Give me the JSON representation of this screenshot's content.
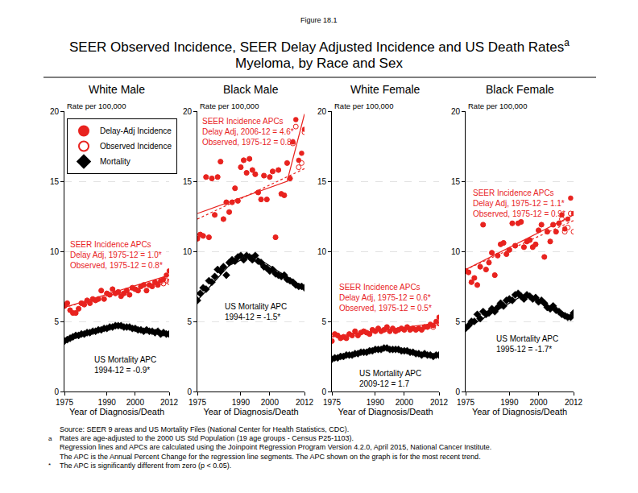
{
  "figure_label": "Figure 18.1",
  "title_lines": [
    "SEER Observed Incidence, SEER Delay Adjusted Incidence and US Death Rates",
    "Myeloma, by Race and Sex"
  ],
  "title_mark": "a",
  "footnotes": [
    {
      "mark": null,
      "text": "Source: SEER 9 areas and US Mortality Files (National Center for Health Statistics, CDC)."
    },
    {
      "mark": "a",
      "text": "Rates are age-adjusted to the 2000 US Std Population (19 age groups - Census P25-1103)."
    },
    {
      "mark": null,
      "text": "Regression lines and APCs are calculated using the Joinpoint Regression Program Version 4.2.0, April 2015, National Cancer Institute."
    },
    {
      "mark": null,
      "text": "The APC is the Annual Percent Change for the regression line segments. The APC shown on the graph is for the most recent trend."
    },
    {
      "mark": "*",
      "text": "The APC is significantly different from zero (p < 0.05)."
    }
  ],
  "chart_data": [
    {
      "type": "scatter",
      "title": "White Male",
      "y_label": "Rate per 100,000",
      "x_label": "Year of Diagnosis/Death",
      "xlim": [
        1975,
        2012
      ],
      "xticks": [
        1975,
        1990,
        2000,
        2012
      ],
      "ylim": [
        0,
        20
      ],
      "yticks": [
        0,
        5,
        10,
        15,
        20
      ],
      "grid": true,
      "legend": "top-left",
      "x": [
        1975,
        1976,
        1977,
        1978,
        1979,
        1980,
        1981,
        1982,
        1983,
        1984,
        1985,
        1986,
        1987,
        1988,
        1989,
        1990,
        1991,
        1992,
        1993,
        1994,
        1995,
        1996,
        1997,
        1998,
        1999,
        2000,
        2001,
        2002,
        2003,
        2004,
        2005,
        2006,
        2007,
        2008,
        2009,
        2010,
        2011,
        2012
      ],
      "series": [
        {
          "name": "Delay-Adj Incidence",
          "color": "#e8231f",
          "marker": "circle",
          "values": [
            6.1,
            6.3,
            5.8,
            5.6,
            5.6,
            5.9,
            6.3,
            6.2,
            6.5,
            6.3,
            6.6,
            6.5,
            6.6,
            7.2,
            6.6,
            7.0,
            6.9,
            7.3,
            7.0,
            7.1,
            6.8,
            7.0,
            7.2,
            6.9,
            7.4,
            7.3,
            7.2,
            7.5,
            7.6,
            7.2,
            7.6,
            7.5,
            7.8,
            7.6,
            7.9,
            8.0,
            8.3,
            8.6
          ]
        },
        {
          "name": "Observed Incidence",
          "color": "#e8231f",
          "marker": "circle-open",
          "values": [
            6.1,
            6.3,
            5.8,
            5.6,
            5.6,
            5.9,
            6.3,
            6.2,
            6.5,
            6.3,
            6.6,
            6.5,
            6.6,
            7.2,
            6.6,
            7.0,
            6.9,
            7.3,
            7.0,
            7.1,
            6.8,
            7.0,
            7.2,
            6.9,
            7.4,
            7.3,
            7.2,
            7.5,
            7.6,
            7.2,
            7.6,
            7.5,
            7.8,
            7.6,
            7.8,
            7.7,
            7.9,
            7.8
          ]
        },
        {
          "name": "Mortality",
          "color": "#000000",
          "marker": "diamond",
          "values": [
            3.6,
            3.7,
            3.8,
            3.9,
            4.0,
            4.0,
            4.1,
            4.1,
            4.2,
            4.2,
            4.3,
            4.3,
            4.4,
            4.4,
            4.5,
            4.5,
            4.6,
            4.6,
            4.7,
            4.7,
            4.7,
            4.6,
            4.6,
            4.6,
            4.5,
            4.5,
            4.4,
            4.4,
            4.3,
            4.4,
            4.3,
            4.3,
            4.2,
            4.3,
            4.1,
            4.2,
            4.1,
            4.1
          ]
        }
      ],
      "trend_lines": [
        {
          "x": [
            1975,
            2012
          ],
          "values": [
            6.0,
            8.3
          ],
          "color": "#e8231f",
          "line_style": "solid"
        },
        {
          "x": [
            1975,
            2012
          ],
          "values": [
            6.0,
            8.0
          ],
          "color": "#e8231f",
          "line_style": "dotted"
        },
        {
          "x": [
            1975,
            1982,
            1994,
            2012
          ],
          "values": [
            3.6,
            4.2,
            4.75,
            4.1
          ],
          "color": "#000000",
          "line_style": "solid"
        }
      ],
      "annotations": [
        {
          "lines": [
            "SEER Incidence APCs",
            "Delay Adj, 1975-12 = 1.0*",
            "Observed, 1975-12 = 0.8*"
          ],
          "color": "#e8231f"
        },
        {
          "lines": [
            "US Mortality APC",
            "1994-12 = -0.9*"
          ],
          "color": "#000000"
        }
      ]
    },
    {
      "type": "scatter",
      "title": "Black Male",
      "y_label": "Rate per 100,000",
      "x_label": "Year of Diagnosis/Death",
      "xlim": [
        1975,
        2012
      ],
      "xticks": [
        1975,
        1990,
        2000,
        2012
      ],
      "ylim": [
        0,
        20
      ],
      "yticks": [
        0,
        5,
        10,
        15,
        20
      ],
      "grid": true,
      "x": [
        1975,
        1976,
        1977,
        1978,
        1979,
        1980,
        1981,
        1982,
        1983,
        1984,
        1985,
        1986,
        1987,
        1988,
        1989,
        1990,
        1991,
        1992,
        1993,
        1994,
        1995,
        1996,
        1997,
        1998,
        1999,
        2000,
        2001,
        2002,
        2003,
        2004,
        2005,
        2006,
        2007,
        2008,
        2009,
        2010,
        2011,
        2012
      ],
      "series": [
        {
          "name": "Delay-Adj Incidence",
          "color": "#e8231f",
          "marker": "circle",
          "values": [
            10.9,
            11.2,
            11.1,
            15.3,
            11.0,
            15.2,
            12.6,
            15.3,
            16.4,
            12.3,
            13.5,
            12.8,
            13.5,
            14.5,
            13.6,
            16.0,
            16.5,
            15.6,
            16.6,
            15.8,
            15.5,
            14.2,
            13.7,
            15.4,
            13.7,
            15.3,
            15.7,
            11.0,
            15.8,
            14.1,
            14.0,
            16.3,
            15.2,
            17.8,
            19.4,
            16.5,
            17.0,
            18.7
          ]
        },
        {
          "name": "Observed Incidence",
          "color": "#e8231f",
          "marker": "circle-open",
          "values": [
            10.9,
            11.2,
            11.1,
            15.3,
            11.0,
            15.2,
            12.6,
            15.3,
            16.4,
            12.3,
            13.5,
            12.8,
            13.5,
            14.5,
            13.6,
            16.0,
            16.5,
            15.6,
            16.6,
            15.8,
            15.5,
            14.2,
            13.7,
            15.4,
            13.7,
            15.3,
            15.7,
            11.0,
            15.8,
            14.1,
            14.0,
            16.3,
            15.2,
            17.7,
            18.9,
            16.0,
            16.3,
            18.5
          ]
        },
        {
          "name": "Mortality",
          "color": "#000000",
          "marker": "diamond",
          "values": [
            6.5,
            7.0,
            7.4,
            7.3,
            7.9,
            7.8,
            8.2,
            8.7,
            8.6,
            8.9,
            8.3,
            9.2,
            9.4,
            9.3,
            9.6,
            9.7,
            9.4,
            9.7,
            9.6,
            9.4,
            9.7,
            9.3,
            9.2,
            8.9,
            8.8,
            8.6,
            8.7,
            8.4,
            8.3,
            8.2,
            8.3,
            8.0,
            7.9,
            7.8,
            7.6,
            7.5,
            7.5,
            7.4
          ]
        }
      ],
      "trend_lines": [
        {
          "x": [
            1975,
            2006,
            2012
          ],
          "values": [
            12.7,
            15.0,
            19.8
          ],
          "color": "#e8231f",
          "line_style": "solid"
        },
        {
          "x": [
            1975,
            2012
          ],
          "values": [
            12.3,
            15.9
          ],
          "color": "#e8231f",
          "line_style": "dotted"
        },
        {
          "x": [
            1975,
            1986,
            1994,
            2012
          ],
          "values": [
            6.5,
            9.0,
            9.75,
            7.4
          ],
          "color": "#000000",
          "line_style": "solid"
        }
      ],
      "annotations": [
        {
          "lines": [
            "SEER Incidence APCs",
            "Delay Adj, 2006-12 = 4.6*",
            "Observed, 1975-12 = 0.8*"
          ],
          "color": "#e8231f"
        },
        {
          "lines": [
            "US Mortality APC",
            "1994-12 = -1.5*"
          ],
          "color": "#000000"
        }
      ]
    },
    {
      "type": "scatter",
      "title": "White Female",
      "y_label": "Rate per 100,000",
      "x_label": "Year of Diagnosis/Death",
      "xlim": [
        1975,
        2012
      ],
      "xticks": [
        1975,
        1990,
        2000,
        2012
      ],
      "ylim": [
        0,
        20
      ],
      "yticks": [
        0,
        5,
        10,
        15,
        20
      ],
      "grid": true,
      "x": [
        1975,
        1976,
        1977,
        1978,
        1979,
        1980,
        1981,
        1982,
        1983,
        1984,
        1985,
        1986,
        1987,
        1988,
        1989,
        1990,
        1991,
        1992,
        1993,
        1994,
        1995,
        1996,
        1997,
        1998,
        1999,
        2000,
        2001,
        2002,
        2003,
        2004,
        2005,
        2006,
        2007,
        2008,
        2009,
        2010,
        2011,
        2012
      ],
      "series": [
        {
          "name": "Delay-Adj Incidence",
          "color": "#e8231f",
          "marker": "circle",
          "values": [
            3.6,
            4.1,
            4.0,
            3.8,
            3.9,
            3.8,
            4.1,
            4.0,
            4.3,
            4.0,
            4.2,
            4.3,
            4.2,
            4.1,
            4.4,
            4.3,
            4.5,
            4.3,
            4.4,
            4.6,
            4.3,
            4.5,
            4.3,
            4.4,
            4.5,
            4.4,
            4.6,
            4.4,
            4.5,
            4.4,
            4.5,
            4.4,
            4.6,
            4.6,
            4.8,
            4.7,
            5.0,
            5.3
          ]
        },
        {
          "name": "Observed Incidence",
          "color": "#e8231f",
          "marker": "circle-open",
          "values": [
            3.6,
            4.1,
            4.0,
            3.8,
            3.9,
            3.8,
            4.1,
            4.0,
            4.3,
            4.0,
            4.2,
            4.3,
            4.2,
            4.1,
            4.4,
            4.3,
            4.5,
            4.3,
            4.4,
            4.6,
            4.3,
            4.5,
            4.3,
            4.4,
            4.5,
            4.4,
            4.6,
            4.4,
            4.5,
            4.4,
            4.5,
            4.4,
            4.6,
            4.6,
            4.7,
            4.6,
            4.9,
            4.9
          ]
        },
        {
          "name": "Mortality",
          "color": "#000000",
          "marker": "diamond",
          "values": [
            2.3,
            2.4,
            2.4,
            2.5,
            2.5,
            2.6,
            2.6,
            2.6,
            2.7,
            2.7,
            2.8,
            2.8,
            2.8,
            2.9,
            2.9,
            3.0,
            3.0,
            3.0,
            3.1,
            3.1,
            3.0,
            3.0,
            3.0,
            3.0,
            2.9,
            2.9,
            2.9,
            2.8,
            2.8,
            2.7,
            2.7,
            2.6,
            2.7,
            2.6,
            2.6,
            2.5,
            2.6,
            2.6
          ]
        }
      ],
      "trend_lines": [
        {
          "x": [
            1975,
            2012
          ],
          "values": [
            3.9,
            4.9
          ],
          "color": "#e8231f",
          "line_style": "solid"
        },
        {
          "x": [
            1975,
            2012
          ],
          "values": [
            3.9,
            4.7
          ],
          "color": "#e8231f",
          "line_style": "dotted"
        },
        {
          "x": [
            1975,
            1993,
            2009,
            2012
          ],
          "values": [
            2.3,
            3.05,
            2.55,
            2.6
          ],
          "color": "#000000",
          "line_style": "solid"
        }
      ],
      "annotations": [
        {
          "lines": [
            "SEER Incidence APCs",
            "Delay Adj, 1975-12 = 0.6*",
            "Observed, 1975-12 = 0.5*"
          ],
          "color": "#e8231f"
        },
        {
          "lines": [
            "US Mortality APC",
            "2009-12 = 1.7"
          ],
          "color": "#000000"
        }
      ]
    },
    {
      "type": "scatter",
      "title": "Black Female",
      "y_label": "Rate per 100,000",
      "x_label": "Year of Diagnosis/Death",
      "xlim": [
        1975,
        2012
      ],
      "xticks": [
        1975,
        1990,
        2000,
        2012
      ],
      "ylim": [
        0,
        20
      ],
      "yticks": [
        0,
        5,
        10,
        15,
        20
      ],
      "grid": true,
      "x": [
        1975,
        1976,
        1977,
        1978,
        1979,
        1980,
        1981,
        1982,
        1983,
        1984,
        1985,
        1986,
        1987,
        1988,
        1989,
        1990,
        1991,
        1992,
        1993,
        1994,
        1995,
        1996,
        1997,
        1998,
        1999,
        2000,
        2001,
        2002,
        2003,
        2004,
        2005,
        2006,
        2007,
        2008,
        2009,
        2010,
        2011,
        2012
      ],
      "series": [
        {
          "name": "Delay-Adj Incidence",
          "color": "#e8231f",
          "marker": "circle",
          "values": [
            8.6,
            8.5,
            7.8,
            8.1,
            7.6,
            8.9,
            11.9,
            8.7,
            9.2,
            9.9,
            8.3,
            9.7,
            10.5,
            10.6,
            9.8,
            10.1,
            12.0,
            10.4,
            12.0,
            12.1,
            10.3,
            10.7,
            10.8,
            10.3,
            10.5,
            11.5,
            11.9,
            9.6,
            11.4,
            10.7,
            11.9,
            11.4,
            12.0,
            12.6,
            11.6,
            12.3,
            13.8,
            12.7
          ]
        },
        {
          "name": "Observed Incidence",
          "color": "#e8231f",
          "marker": "circle-open",
          "values": [
            8.6,
            8.5,
            7.8,
            8.1,
            7.6,
            8.9,
            11.9,
            8.7,
            9.2,
            9.9,
            8.3,
            9.7,
            10.5,
            10.6,
            9.8,
            10.1,
            12.0,
            10.4,
            12.0,
            12.1,
            10.3,
            10.7,
            10.8,
            10.3,
            10.5,
            11.5,
            11.9,
            9.6,
            11.4,
            10.7,
            11.9,
            11.4,
            12.0,
            12.3,
            11.4,
            11.7,
            12.7,
            11.4
          ]
        },
        {
          "name": "Mortality",
          "color": "#000000",
          "marker": "diamond",
          "values": [
            4.5,
            4.7,
            5.0,
            5.0,
            5.5,
            5.2,
            5.7,
            5.5,
            5.6,
            5.9,
            5.7,
            6.0,
            6.3,
            6.1,
            6.5,
            6.6,
            6.5,
            6.9,
            7.0,
            6.8,
            6.6,
            6.9,
            6.8,
            6.6,
            6.7,
            6.4,
            6.5,
            6.3,
            6.0,
            5.9,
            6.1,
            5.8,
            5.7,
            5.5,
            5.4,
            5.3,
            5.3,
            5.6
          ]
        }
      ],
      "trend_lines": [
        {
          "x": [
            1975,
            2012
          ],
          "values": [
            8.7,
            12.6
          ],
          "color": "#e8231f",
          "line_style": "solid"
        },
        {
          "x": [
            1975,
            2012
          ],
          "values": [
            8.7,
            12.2
          ],
          "color": "#e8231f",
          "line_style": "dotted"
        },
        {
          "x": [
            1975,
            1995,
            2012
          ],
          "values": [
            4.5,
            6.9,
            5.3
          ],
          "color": "#000000",
          "line_style": "solid"
        }
      ],
      "annotations": [
        {
          "lines": [
            "SEER Incidence APCs",
            "Delay Adj, 1975-12 = 1.1*",
            "Observed, 1975-12 = 0.9*"
          ],
          "color": "#e8231f"
        },
        {
          "lines": [
            "US Mortality APC",
            "1995-12 = -1.7*"
          ],
          "color": "#000000"
        }
      ]
    }
  ]
}
